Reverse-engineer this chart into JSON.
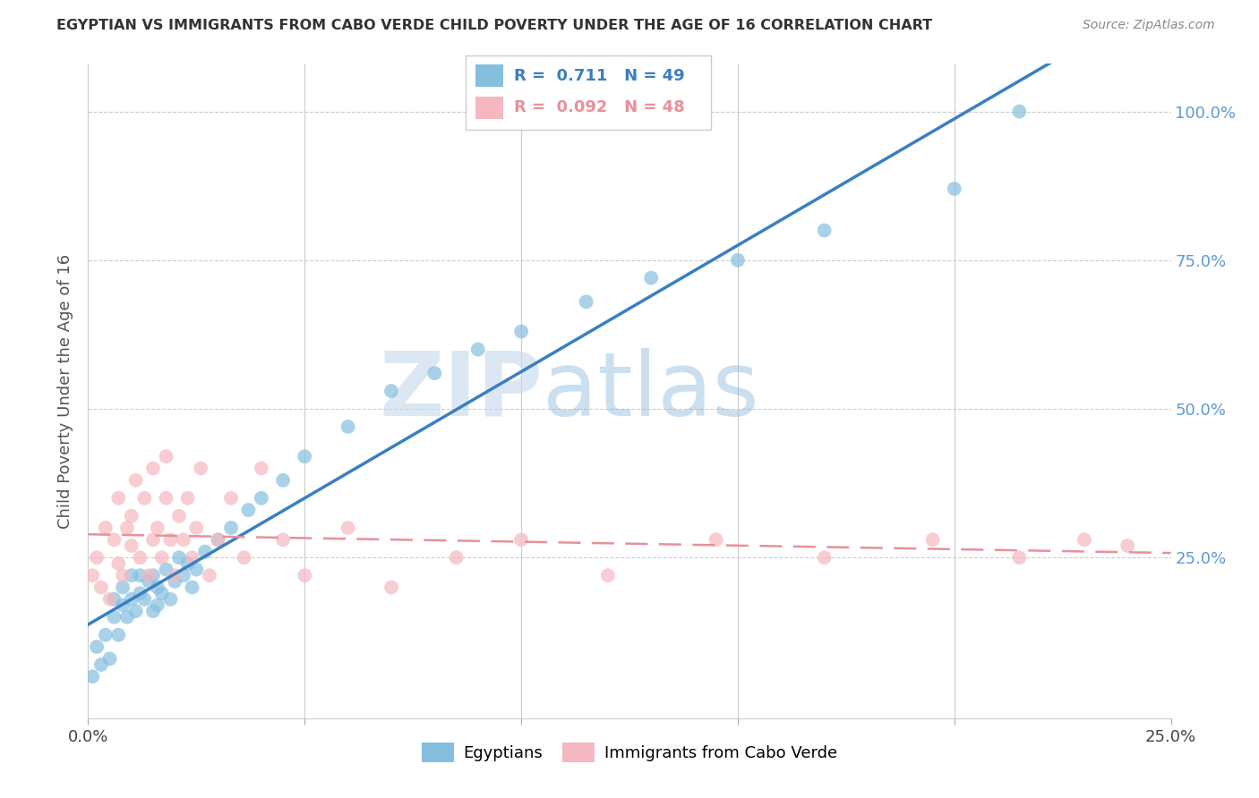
{
  "title": "EGYPTIAN VS IMMIGRANTS FROM CABO VERDE CHILD POVERTY UNDER THE AGE OF 16 CORRELATION CHART",
  "source": "Source: ZipAtlas.com",
  "ylabel": "Child Poverty Under the Age of 16",
  "xlim": [
    0.0,
    0.25
  ],
  "ylim": [
    -0.02,
    1.08
  ],
  "ytick_vals": [
    0.0,
    0.25,
    0.5,
    0.75,
    1.0
  ],
  "ytick_labels": [
    "",
    "25.0%",
    "50.0%",
    "75.0%",
    "100.0%"
  ],
  "xtick_vals": [
    0.0,
    0.05,
    0.1,
    0.15,
    0.2,
    0.25
  ],
  "xtick_labels": [
    "0.0%",
    "",
    "",
    "",
    "",
    "25.0%"
  ],
  "egyptians_R": 0.711,
  "egyptians_N": 49,
  "caboverde_R": 0.092,
  "caboverde_N": 48,
  "eg_color": "#85bfe0",
  "cv_color": "#f5b8c0",
  "eg_line_color": "#3a7fc1",
  "cv_line_color": "#e8909a",
  "watermark_zip": "ZIP",
  "watermark_atlas": "atlas",
  "bg_color": "#ffffff",
  "eg_x": [
    0.001,
    0.002,
    0.003,
    0.004,
    0.005,
    0.006,
    0.006,
    0.007,
    0.008,
    0.008,
    0.009,
    0.01,
    0.01,
    0.011,
    0.012,
    0.012,
    0.013,
    0.014,
    0.015,
    0.015,
    0.016,
    0.016,
    0.017,
    0.018,
    0.019,
    0.02,
    0.021,
    0.022,
    0.023,
    0.024,
    0.025,
    0.027,
    0.03,
    0.033,
    0.037,
    0.04,
    0.045,
    0.05,
    0.06,
    0.07,
    0.08,
    0.09,
    0.1,
    0.115,
    0.13,
    0.15,
    0.17,
    0.2,
    0.215
  ],
  "eg_y": [
    0.05,
    0.1,
    0.07,
    0.12,
    0.08,
    0.15,
    0.18,
    0.12,
    0.2,
    0.17,
    0.15,
    0.22,
    0.18,
    0.16,
    0.22,
    0.19,
    0.18,
    0.21,
    0.16,
    0.22,
    0.2,
    0.17,
    0.19,
    0.23,
    0.18,
    0.21,
    0.25,
    0.22,
    0.24,
    0.2,
    0.23,
    0.26,
    0.28,
    0.3,
    0.33,
    0.35,
    0.38,
    0.42,
    0.47,
    0.53,
    0.56,
    0.6,
    0.63,
    0.68,
    0.72,
    0.75,
    0.8,
    0.87,
    1.0
  ],
  "cv_x": [
    0.001,
    0.002,
    0.003,
    0.004,
    0.005,
    0.006,
    0.007,
    0.007,
    0.008,
    0.009,
    0.01,
    0.01,
    0.011,
    0.012,
    0.013,
    0.014,
    0.015,
    0.015,
    0.016,
    0.017,
    0.018,
    0.018,
    0.019,
    0.02,
    0.021,
    0.022,
    0.023,
    0.024,
    0.025,
    0.026,
    0.028,
    0.03,
    0.033,
    0.036,
    0.04,
    0.045,
    0.05,
    0.06,
    0.07,
    0.085,
    0.1,
    0.12,
    0.145,
    0.17,
    0.195,
    0.215,
    0.23,
    0.24
  ],
  "cv_y": [
    0.22,
    0.25,
    0.2,
    0.3,
    0.18,
    0.28,
    0.24,
    0.35,
    0.22,
    0.3,
    0.27,
    0.32,
    0.38,
    0.25,
    0.35,
    0.22,
    0.4,
    0.28,
    0.3,
    0.25,
    0.35,
    0.42,
    0.28,
    0.22,
    0.32,
    0.28,
    0.35,
    0.25,
    0.3,
    0.4,
    0.22,
    0.28,
    0.35,
    0.25,
    0.4,
    0.28,
    0.22,
    0.3,
    0.2,
    0.25,
    0.28,
    0.22,
    0.28,
    0.25,
    0.28,
    0.25,
    0.28,
    0.27
  ]
}
